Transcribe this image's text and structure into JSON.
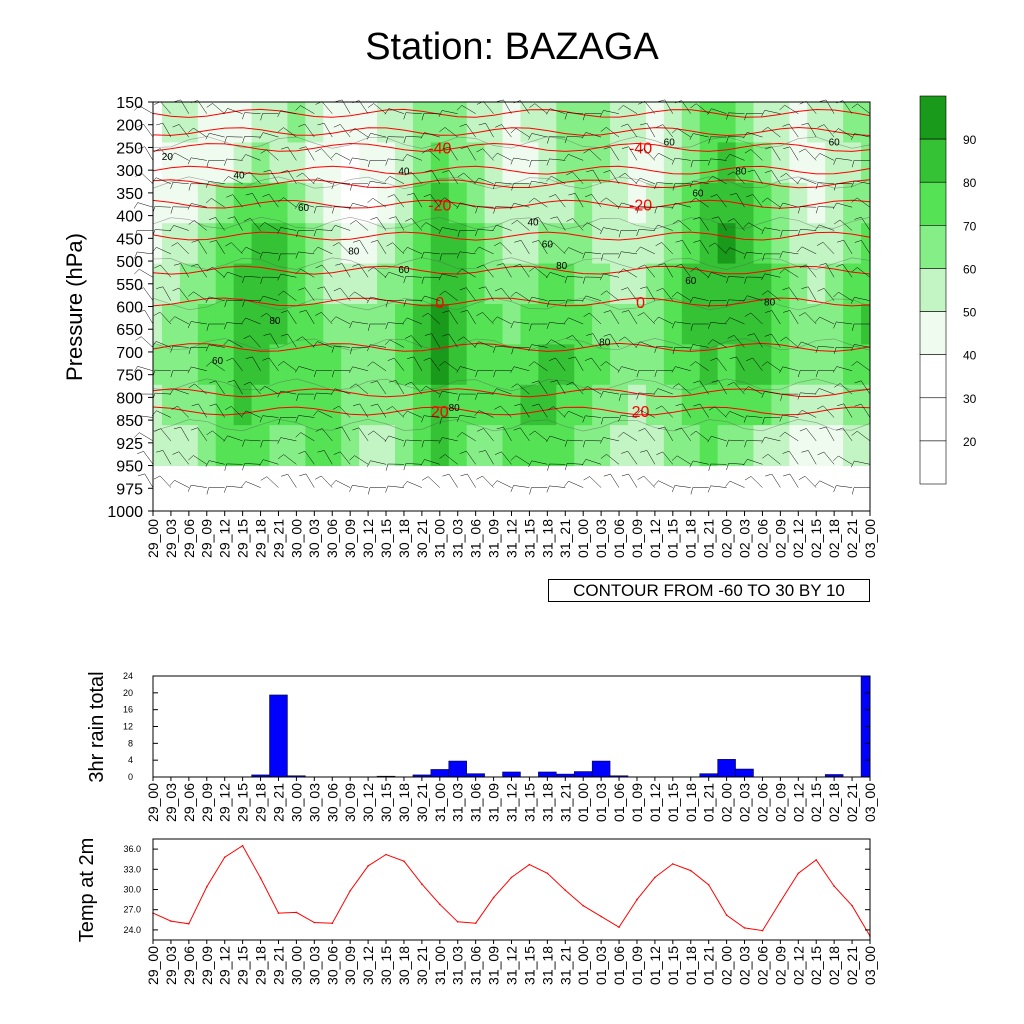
{
  "title": "Station: BAZAGA",
  "contour_note": "CONTOUR FROM -60 TO 30 BY 10",
  "colors": {
    "rh_scale": [
      "#ffffff",
      "#f0fbf0",
      "#c3f4c3",
      "#86ee86",
      "#55e255",
      "#35c335",
      "#1a9a1a"
    ],
    "temp_contour": "#ff0000",
    "rain_bar": "#0000ff",
    "temp_line": "#ff0000",
    "barb": "#000000"
  },
  "chart_data": [
    {
      "type": "heatmap",
      "name": "humidity-temperature-time-section",
      "ylabel": "Pressure (hPa)",
      "y_ticks": [
        "150",
        "200",
        "250",
        "300",
        "350",
        "400",
        "450",
        "500",
        "550",
        "600",
        "650",
        "700",
        "750",
        "800",
        "850",
        "925",
        "950",
        "975",
        "1000"
      ],
      "x_ticks": [
        "29_00",
        "29_03",
        "29_06",
        "29_09",
        "29_12",
        "29_15",
        "29_18",
        "29_21",
        "30_00",
        "30_03",
        "30_06",
        "30_09",
        "30_12",
        "30_15",
        "30_18",
        "30_21",
        "31_00",
        "31_03",
        "31_06",
        "31_09",
        "31_12",
        "31_15",
        "31_18",
        "31_21",
        "01_00",
        "01_03",
        "01_06",
        "01_09",
        "01_12",
        "01_15",
        "01_18",
        "01_21",
        "02_00",
        "02_03",
        "02_06",
        "02_09",
        "02_12",
        "02_15",
        "02_18",
        "02_21",
        "03_00"
      ],
      "colorbar_labels": [
        "20",
        "30",
        "40",
        "50",
        "60",
        "70",
        "80",
        "90"
      ],
      "rh_levels_note": "relative humidity shaded 20-100 by 10; data below 950 hPa missing",
      "rh_grid": [
        [
          20,
          55,
          50,
          45,
          40,
          45,
          50,
          55,
          60,
          55,
          45,
          40,
          45,
          50,
          55,
          60,
          65,
          60,
          55,
          50,
          45,
          50,
          55,
          60,
          65,
          60,
          55,
          50,
          45,
          50,
          60,
          70,
          75,
          65,
          55,
          50,
          45,
          50,
          55,
          60,
          65
        ],
        [
          35,
          45,
          40,
          40,
          45,
          55,
          60,
          55,
          50,
          45,
          40,
          35,
          40,
          45,
          55,
          65,
          70,
          65,
          60,
          50,
          45,
          45,
          50,
          60,
          65,
          60,
          50,
          45,
          45,
          55,
          65,
          75,
          80,
          70,
          60,
          50,
          45,
          45,
          50,
          55,
          60
        ],
        [
          40,
          40,
          45,
          50,
          60,
          70,
          75,
          70,
          60,
          50,
          40,
          35,
          35,
          45,
          55,
          70,
          80,
          75,
          65,
          55,
          50,
          50,
          50,
          55,
          60,
          55,
          50,
          45,
          50,
          60,
          70,
          80,
          85,
          80,
          70,
          60,
          50,
          45,
          50,
          60,
          65
        ],
        [
          45,
          50,
          55,
          60,
          70,
          75,
          85,
          80,
          70,
          60,
          50,
          40,
          40,
          50,
          60,
          75,
          85,
          80,
          70,
          60,
          55,
          55,
          60,
          65,
          60,
          55,
          50,
          50,
          55,
          65,
          75,
          85,
          90,
          85,
          75,
          65,
          55,
          50,
          55,
          65,
          70
        ],
        [
          50,
          55,
          60,
          65,
          75,
          80,
          85,
          85,
          75,
          65,
          55,
          50,
          50,
          60,
          65,
          75,
          85,
          85,
          75,
          65,
          60,
          65,
          70,
          70,
          65,
          60,
          55,
          55,
          60,
          70,
          80,
          85,
          85,
          85,
          80,
          70,
          60,
          55,
          60,
          70,
          75
        ],
        [
          55,
          60,
          65,
          70,
          75,
          80,
          85,
          80,
          75,
          70,
          65,
          60,
          60,
          65,
          70,
          80,
          90,
          85,
          75,
          70,
          65,
          70,
          75,
          75,
          70,
          65,
          60,
          60,
          65,
          70,
          80,
          85,
          80,
          85,
          85,
          75,
          65,
          60,
          65,
          75,
          80
        ],
        [
          60,
          65,
          65,
          70,
          75,
          80,
          80,
          75,
          75,
          70,
          70,
          65,
          60,
          65,
          70,
          80,
          90,
          80,
          75,
          75,
          70,
          75,
          80,
          80,
          75,
          70,
          65,
          60,
          65,
          70,
          75,
          80,
          75,
          80,
          80,
          75,
          65,
          60,
          65,
          70,
          75
        ],
        [
          55,
          60,
          60,
          65,
          75,
          80,
          75,
          70,
          70,
          75,
          70,
          65,
          60,
          60,
          65,
          75,
          85,
          75,
          70,
          70,
          75,
          80,
          80,
          75,
          70,
          65,
          60,
          55,
          60,
          65,
          70,
          75,
          70,
          70,
          70,
          65,
          55,
          50,
          55,
          60,
          65
        ],
        [
          50,
          55,
          55,
          60,
          70,
          75,
          70,
          65,
          65,
          70,
          70,
          60,
          55,
          55,
          60,
          70,
          80,
          70,
          65,
          65,
          70,
          75,
          75,
          70,
          65,
          60,
          55,
          50,
          55,
          60,
          65,
          70,
          65,
          60,
          55,
          50,
          40,
          40,
          45,
          50,
          55
        ]
      ],
      "temperature_contours": [
        {
          "label": "-40",
          "pressure_hPa": 250
        },
        {
          "label": "-20",
          "pressure_hPa": 375
        },
        {
          "label": "0",
          "pressure_hPa": 590
        },
        {
          "label": "20",
          "pressure_hPa": 830
        }
      ],
      "rh_contour_labels": [
        "20",
        "40",
        "60",
        "80"
      ]
    },
    {
      "type": "bar",
      "name": "3hr-rain",
      "ylabel": "3hr rain total",
      "ylim": [
        0,
        24
      ],
      "y_ticks": [
        "0",
        "4",
        "8",
        "12",
        "16",
        "20",
        "24"
      ],
      "categories": [
        "29_00",
        "29_03",
        "29_06",
        "29_09",
        "29_12",
        "29_15",
        "29_18",
        "29_21",
        "30_00",
        "30_03",
        "30_06",
        "30_09",
        "30_12",
        "30_15",
        "30_18",
        "30_21",
        "31_00",
        "31_03",
        "31_06",
        "31_09",
        "31_12",
        "31_15",
        "31_18",
        "31_21",
        "01_00",
        "01_03",
        "01_06",
        "01_09",
        "01_12",
        "01_15",
        "01_18",
        "01_21",
        "02_00",
        "02_03",
        "02_06",
        "02_09",
        "02_12",
        "02_15",
        "02_18",
        "02_21",
        "03_00"
      ],
      "values": [
        0,
        0,
        0,
        0,
        0,
        0,
        0.5,
        19.5,
        0.3,
        0,
        0,
        0,
        0,
        0.2,
        0,
        0.5,
        1.8,
        3.8,
        0.8,
        0,
        1.2,
        0,
        1.2,
        0.7,
        1.3,
        3.8,
        0.3,
        0,
        0,
        0,
        0,
        0.8,
        4.2,
        1.9,
        0,
        0,
        0,
        0,
        0.6,
        0,
        25
      ]
    },
    {
      "type": "line",
      "name": "temperature-2m",
      "ylabel": "Temp at 2m",
      "ylim": [
        22.5,
        37.5
      ],
      "y_ticks": [
        "24.0",
        "27.0",
        "30.0",
        "33.0",
        "36.0"
      ],
      "categories": [
        "29_00",
        "29_03",
        "29_06",
        "29_09",
        "29_12",
        "29_15",
        "29_18",
        "29_21",
        "30_00",
        "30_03",
        "30_06",
        "30_09",
        "30_12",
        "30_15",
        "30_18",
        "30_21",
        "31_00",
        "31_03",
        "31_06",
        "31_09",
        "31_12",
        "31_15",
        "31_18",
        "31_21",
        "01_00",
        "01_03",
        "01_06",
        "01_09",
        "01_12",
        "01_15",
        "01_18",
        "01_21",
        "02_00",
        "02_03",
        "02_06",
        "02_09",
        "02_12",
        "02_15",
        "02_18",
        "02_21",
        "03_00"
      ],
      "values": [
        26.5,
        25.3,
        24.9,
        30.4,
        34.8,
        36.5,
        31.7,
        26.5,
        26.6,
        25.1,
        25.0,
        29.8,
        33.5,
        35.2,
        34.2,
        30.8,
        27.8,
        25.2,
        25.0,
        28.8,
        31.8,
        33.7,
        32.4,
        29.9,
        27.6,
        26.0,
        24.4,
        28.5,
        31.8,
        33.8,
        32.8,
        30.7,
        26.2,
        24.3,
        23.9,
        28.2,
        32.4,
        34.4,
        30.5,
        27.6,
        23.1
      ]
    }
  ]
}
